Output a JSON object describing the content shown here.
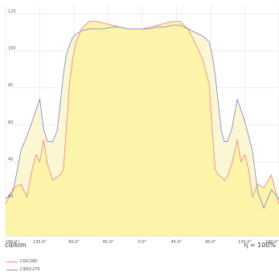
{
  "chart_data": {
    "type": "line",
    "title": "",
    "xlabel": "",
    "ylabel": "cd/klm",
    "efficiency_label": "η = 100%",
    "grid": true,
    "x": [
      -180,
      -170,
      -160,
      -152,
      -145,
      -140,
      -135,
      -130,
      -125,
      -118,
      -112,
      -108,
      -104,
      -100,
      -96,
      -92,
      -88,
      -80,
      -70,
      -60,
      -50,
      -40,
      -30,
      -20,
      -10,
      0,
      10,
      20,
      30,
      40,
      50,
      60,
      70,
      80,
      88,
      92,
      96,
      100,
      104,
      108,
      112,
      118,
      125,
      130,
      135,
      140,
      145,
      152,
      160,
      170,
      180
    ],
    "xlim": [
      -180,
      180
    ],
    "ylim": [
      0,
      125
    ],
    "x_ticks": [
      {
        "value": -180,
        "label": "180.0°"
      },
      {
        "value": -135,
        "label": "135.0°"
      },
      {
        "value": -90,
        "label": "90.0°"
      },
      {
        "value": -45,
        "label": "45.0°"
      },
      {
        "value": 0,
        "label": "0.0°"
      },
      {
        "value": 45,
        "label": "45.0°"
      },
      {
        "value": 90,
        "label": "90.0°"
      },
      {
        "value": 135,
        "label": "135.0°"
      },
      {
        "value": 180,
        "label": "180.0°"
      }
    ],
    "y_ticks": [
      {
        "value": 20,
        "label": "20"
      },
      {
        "value": 40,
        "label": "40"
      },
      {
        "value": 60,
        "label": "60"
      },
      {
        "value": 80,
        "label": "80"
      },
      {
        "value": 100,
        "label": "100"
      },
      {
        "value": 120,
        "label": "120"
      }
    ],
    "series": [
      {
        "name": "C0/C180",
        "color": "#f28a8a",
        "values": [
          17,
          26,
          28,
          21,
          36,
          44,
          40,
          52,
          39,
          30,
          32,
          33,
          36,
          58,
          82,
          95,
          104,
          112,
          116,
          116,
          115,
          114,
          113,
          112,
          112,
          112,
          113,
          114,
          115,
          116,
          116,
          112,
          104,
          95,
          82,
          58,
          36,
          33,
          32,
          30,
          32,
          39,
          52,
          40,
          44,
          36,
          21,
          28,
          26,
          33,
          17
        ]
      },
      {
        "name": "C90/C270",
        "color": "#8a8ad0",
        "values": [
          20,
          24,
          46,
          54,
          62,
          68,
          74,
          58,
          51,
          51,
          57,
          72,
          87,
          98,
          103,
          107,
          109,
          111,
          112,
          112,
          112,
          113,
          113,
          112,
          112,
          112,
          112,
          113,
          113,
          114,
          114,
          112,
          110,
          108,
          105,
          98,
          87,
          72,
          57,
          51,
          51,
          58,
          74,
          68,
          62,
          54,
          46,
          24,
          15,
          25,
          20
        ]
      }
    ]
  }
}
